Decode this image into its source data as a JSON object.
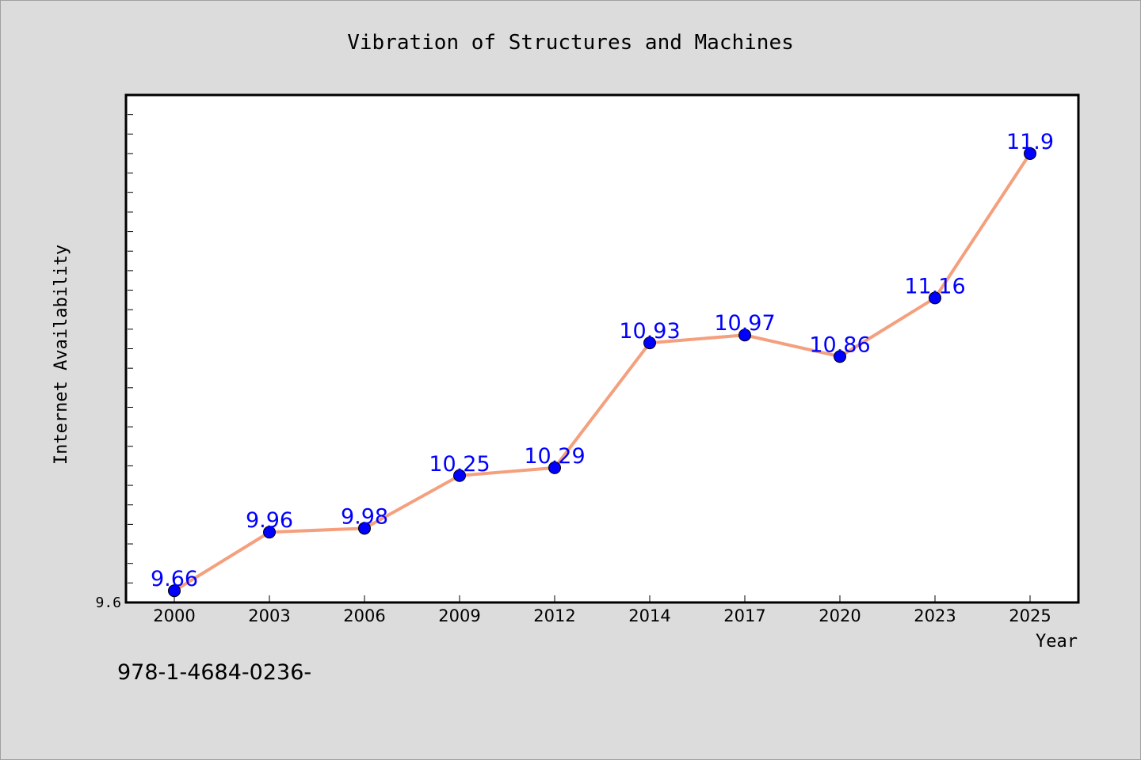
{
  "chart_data": {
    "type": "line",
    "title": "Vibration of Structures and Machines",
    "xlabel": "Year",
    "ylabel": "Internet Availability",
    "categories": [
      "2000",
      "2003",
      "2006",
      "2009",
      "2012",
      "2014",
      "2017",
      "2020",
      "2023",
      "2025"
    ],
    "series": [
      {
        "values": [
          9.66,
          9.96,
          9.98,
          10.25,
          10.29,
          10.93,
          10.97,
          10.86,
          11.16,
          11.9
        ]
      }
    ],
    "ylim": [
      9.6,
      12.2
    ],
    "ytick_labels": [
      "9.6"
    ],
    "line_color": "#f4a07e",
    "marker_color": "#0000ff",
    "label_color": "#0000ff",
    "grid": false
  },
  "footer": {
    "isbn": "978-1-4684-0236-"
  }
}
